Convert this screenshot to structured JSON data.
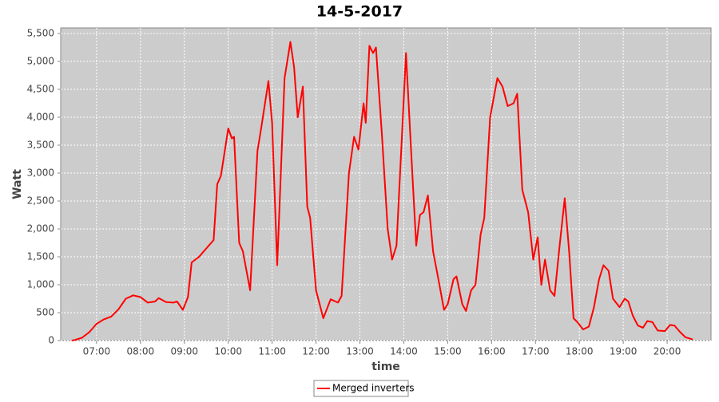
{
  "chart_data": {
    "type": "line",
    "title": "14-5-2017",
    "x_label": "time",
    "y_label": "Watt",
    "x": [
      "06:26",
      "06:30",
      "06:40",
      "06:50",
      "07:00",
      "07:10",
      "07:20",
      "07:30",
      "07:40",
      "07:50",
      "08:00",
      "08:10",
      "08:20",
      "08:25",
      "08:35",
      "08:45",
      "08:50",
      "08:58",
      "09:05",
      "09:10",
      "09:20",
      "09:30",
      "09:40",
      "09:45",
      "09:50",
      "10:00",
      "10:05",
      "10:08",
      "10:15",
      "10:20",
      "10:30",
      "10:40",
      "10:45",
      "10:55",
      "11:00",
      "11:07",
      "11:17",
      "11:25",
      "11:30",
      "11:35",
      "11:42",
      "11:48",
      "11:52",
      "12:00",
      "12:10",
      "12:20",
      "12:30",
      "12:35",
      "12:45",
      "12:52",
      "12:58",
      "13:05",
      "13:08",
      "13:13",
      "13:18",
      "13:22",
      "13:30",
      "13:38",
      "13:44",
      "13:50",
      "13:58",
      "14:03",
      "14:10",
      "14:17",
      "14:22",
      "14:27",
      "14:33",
      "14:40",
      "14:48",
      "14:55",
      "15:00",
      "15:08",
      "15:12",
      "15:20",
      "15:25",
      "15:32",
      "15:38",
      "15:45",
      "15:50",
      "15:58",
      "16:08",
      "16:15",
      "16:22",
      "16:30",
      "16:35",
      "16:42",
      "16:50",
      "16:57",
      "17:03",
      "17:08",
      "17:13",
      "17:20",
      "17:26",
      "17:33",
      "17:40",
      "17:46",
      "17:52",
      "17:58",
      "18:05",
      "18:13",
      "18:20",
      "18:27",
      "18:33",
      "18:40",
      "18:46",
      "18:55",
      "19:02",
      "19:07",
      "19:13",
      "19:20",
      "19:27",
      "19:33",
      "19:40",
      "19:47",
      "19:57",
      "20:04",
      "20:10",
      "20:18",
      "20:25",
      "20:35"
    ],
    "series": [
      {
        "name": "Merged inverters",
        "color": "#ff0000",
        "values": [
          0,
          10,
          50,
          150,
          300,
          380,
          430,
          560,
          750,
          810,
          780,
          680,
          700,
          760,
          690,
          680,
          700,
          550,
          780,
          1400,
          1500,
          1650,
          1800,
          2800,
          2950,
          3800,
          3620,
          3650,
          1750,
          1600,
          900,
          3400,
          3800,
          4650,
          3900,
          1350,
          4700,
          5350,
          4900,
          4000,
          4550,
          2400,
          2200,
          900,
          400,
          740,
          680,
          800,
          3000,
          3650,
          3420,
          4250,
          3900,
          5280,
          5150,
          5250,
          3700,
          2000,
          1450,
          1700,
          3800,
          5150,
          3400,
          1700,
          2250,
          2300,
          2600,
          1600,
          1050,
          550,
          650,
          1100,
          1150,
          650,
          530,
          900,
          1000,
          1900,
          2200,
          4000,
          4700,
          4550,
          4200,
          4250,
          4420,
          2700,
          2300,
          1450,
          1850,
          1000,
          1450,
          900,
          800,
          1700,
          2550,
          1600,
          400,
          320,
          200,
          250,
          600,
          1100,
          1350,
          1250,
          750,
          600,
          750,
          700,
          450,
          270,
          230,
          350,
          330,
          180,
          170,
          280,
          270,
          150,
          60,
          20
        ]
      }
    ],
    "xlim": [
      "06:11",
      "21:00"
    ],
    "xticks": [
      "07:00",
      "08:00",
      "09:00",
      "10:00",
      "11:00",
      "12:00",
      "13:00",
      "14:00",
      "15:00",
      "16:00",
      "17:00",
      "18:00",
      "19:00",
      "20:00"
    ],
    "ylim": [
      0,
      5600
    ],
    "yticks": [
      0,
      {
        "value": 500,
        "label": "500"
      },
      {
        "value": 1000,
        "label": "1,000"
      },
      {
        "value": 1500,
        "label": "1,500"
      },
      {
        "value": 2000,
        "label": "2,000"
      },
      {
        "value": 2500,
        "label": "2,500"
      },
      {
        "value": 3000,
        "label": "3,000"
      },
      {
        "value": 3500,
        "label": "3,500"
      },
      {
        "value": 4000,
        "label": "4,000"
      },
      {
        "value": 4500,
        "label": "4,500"
      },
      {
        "value": 5000,
        "label": "5,000"
      },
      {
        "value": 5500,
        "label": "5,500"
      }
    ],
    "grid": true,
    "legend": "bottom"
  }
}
